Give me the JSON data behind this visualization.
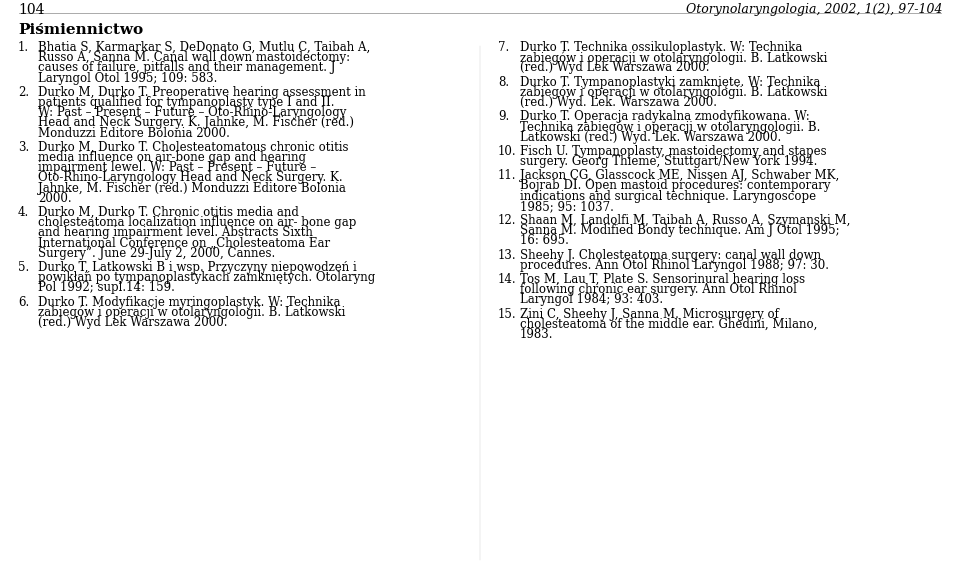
{
  "background_color": "#ffffff",
  "page_number": "104",
  "header_right": "Otorynolaryngologia, 2002, 1(2), 97-104",
  "section_title": "Piśmiennictwo",
  "left_column": [
    {
      "num": "1.",
      "text": "Bhatia S, Karmarkar S, DeDonato G, Mutlu C, Taibah A, Russo A, Sanna M. Canal wall down mastoidectomy: causes of failure, pitfalls and their management. J Laryngol Otol 1995; 109: 583."
    },
    {
      "num": "2.",
      "text": "Durko M, Durko T. Preoperative hearing assessment in patients qualified for tympanoplasty type I and II. W: Past – Present – Future – Oto-Rhino-Laryngology Head and Neck Surgery. K. Jahnke, M. Fischer (red.) Monduzzi Editore Bolonia 2000."
    },
    {
      "num": "3.",
      "text": "Durko M, Durko T. Cholesteatomatous chronic otitis media influence on air-bone gap and hearing impairment lewel. W: Past – Present – Future – Oto-Rhino-Laryngology Head and Neck Surgery. K. Jahnke, M. Fischer (red.) Monduzzi Editore Bolonia 2000."
    },
    {
      "num": "4.",
      "text": "Durko M, Durko T. Chronic otitis media and cholesteatoma localization influence on air- bone gap and hearing impairment level. Abstracts Sixth International Conference on „Cholesteatoma Ear Surgery”. June 29-July 2, 2000, Cannes."
    },
    {
      "num": "5.",
      "text": "Durko T, Latkowski B i wsp. Przyczyny niepowodzeń i powikłań po tympanoplastykach zamkniętych. Otolaryng Pol 1992; supl.14: 159."
    },
    {
      "num": "6.",
      "text": "Durko T. Modyfikacje myringoplastyk. W: Technika zabiegów i operacji w otolaryngologii. B. Latkowski (red.) Wyd Lek Warszawa 2000."
    }
  ],
  "right_column": [
    {
      "num": "7.",
      "text": "Durko T. Technika ossikuloplastyk. W: Technika zabiegów i operacji w otolaryngologii. B. Latkowski (red.) Wyd Lek Warszawa 2000."
    },
    {
      "num": "8.",
      "text": "Durko T. Tympanoplastyki zamknięte. W: Technika zabiegów i operacji w otolaryngologii. B. Latkowski (red.) Wyd. Lek. Warszawa 2000."
    },
    {
      "num": "9.",
      "text": "Durko T. Operacja radykalna zmodyfikowana. W: Technika zabiegów i operacji w otolaryngologii. B. Latkowski (red.) Wyd. Lek. Warszawa 2000."
    },
    {
      "num": "10.",
      "text": "Fisch U. Tympanoplasty, mastoidectomy and stapes surgery. Georg Thieme, Stuttgart/New York 1994."
    },
    {
      "num": "11.",
      "text": "Jackson CG, Glasscock ME, Nissen AJ, Schwaber MK, Bojrab DI. Open mastoid procedures: contemporary indications and surgical technique. Laryngoscope 1985; 95: 1037."
    },
    {
      "num": "12.",
      "text": "Shaan M, Landolfi M, Taibah A, Russo A, Szymanski M, Sanna M. Modified Bondy technique. Am J Otol 1995; 16: 695."
    },
    {
      "num": "13.",
      "text": "Sheehy J. Cholesteatoma surgery: canal wall down procedures. Ann Otol Rhinol Laryngol 1988; 97: 30."
    },
    {
      "num": "14.",
      "text": "Tos M, Lau T, Plate S. Sensorinural hearing loss following chronic ear surgery. Ann Otol Rhinol Laryngol 1984; 93: 403."
    },
    {
      "num": "15.",
      "text": "Zini C, Sheehy J, Sanna M. Microsurgery of cholesteatoma of the middle ear. Ghedini, Milano, 1983."
    }
  ],
  "font_size_body": 8.5,
  "font_size_header": 9.0,
  "font_size_page_num": 10.0,
  "font_size_section": 11.0,
  "text_color": "#000000",
  "header_color": "#333333"
}
